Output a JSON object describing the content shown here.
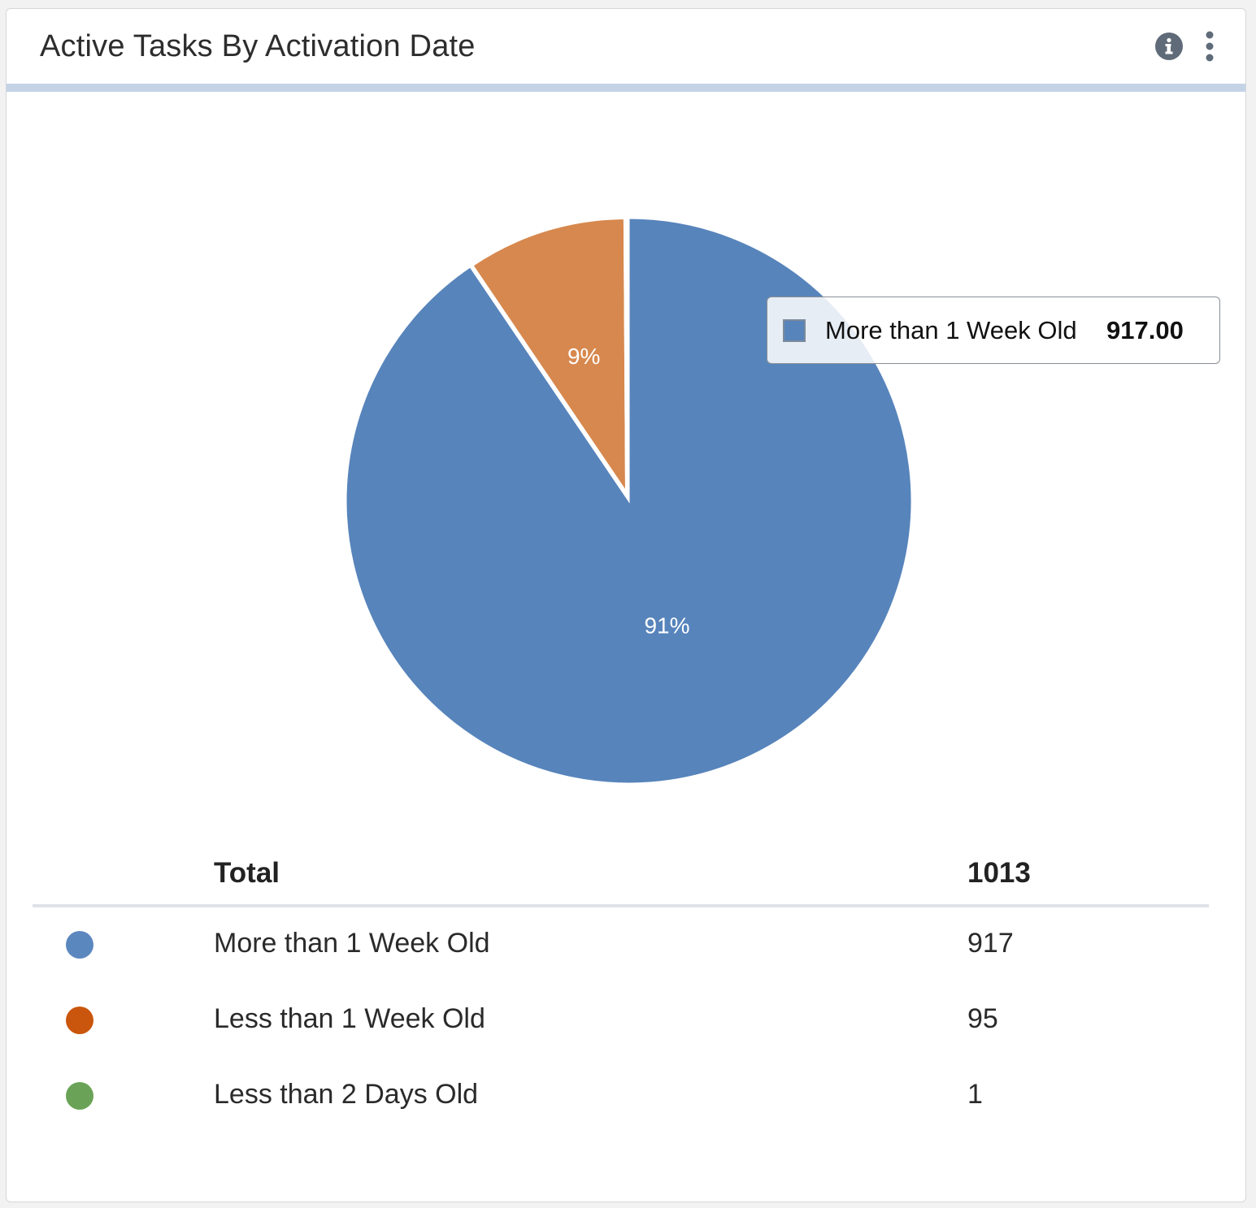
{
  "widget": {
    "title": "Active Tasks By Activation Date",
    "info_icon": "info-circle-icon",
    "menu_icon": "more-vertical-icon",
    "header_accent_color": "#c5d3e6"
  },
  "chart_data": {
    "type": "pie",
    "categories": [
      "More than 1 Week Old",
      "Less than 1 Week Old",
      "Less than 2 Days Old"
    ],
    "values": [
      917,
      95,
      1
    ],
    "slice_labels": [
      "91%",
      "9%",
      ""
    ],
    "colors": [
      "#5784bb",
      "#d7884e",
      "#6aa357"
    ],
    "start_angle_deg": 0,
    "direction": "clockwise",
    "exploded_slice": "More than 1 Week Old"
  },
  "tooltip": {
    "series": "More than 1 Week Old",
    "value": "917.00",
    "swatch_color": "#5784bb"
  },
  "legend": {
    "total_label": "Total",
    "total_value": "1013",
    "rows": [
      {
        "label": "More than 1 Week Old",
        "value": "917",
        "color": "#5b87bf"
      },
      {
        "label": "Less than 1 Week Old",
        "value": "95",
        "color": "#c9560c"
      },
      {
        "label": "Less than 2 Days Old",
        "value": "1",
        "color": "#6aa357"
      }
    ]
  }
}
